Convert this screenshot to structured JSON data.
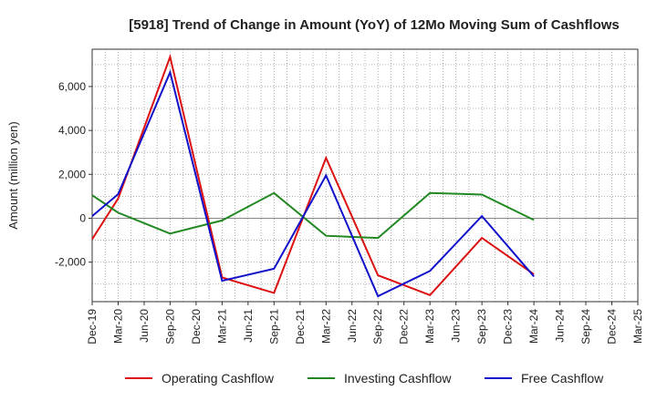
{
  "chart_data": {
    "type": "line",
    "title": "[5918]  Trend of Change in Amount (YoY) of 12Mo Moving Sum of Cashflows",
    "xlabel": "",
    "ylabel": "Amount (million yen)",
    "ylim": [
      -3800,
      7700
    ],
    "yticks": [
      -2000,
      0,
      2000,
      4000,
      6000
    ],
    "ytick_labels": [
      "-2,000",
      "0",
      "2,000",
      "4,000",
      "6,000"
    ],
    "categories": [
      "Dec-19",
      "Mar-20",
      "Jun-20",
      "Sep-20",
      "Dec-20",
      "Mar-21",
      "Jun-21",
      "Sep-21",
      "Dec-21",
      "Mar-22",
      "Jun-22",
      "Sep-22",
      "Dec-22",
      "Mar-23",
      "Jun-23",
      "Sep-23",
      "Dec-23",
      "Mar-24",
      "Jun-24",
      "Sep-24",
      "Dec-24",
      "Mar-25"
    ],
    "grid": true,
    "legend_position": "bottom",
    "series": [
      {
        "name": "Operating Cashflow",
        "color": "#dd1111",
        "values": [
          -950,
          900,
          null,
          7350,
          null,
          -2700,
          null,
          -3400,
          null,
          2750,
          null,
          -2600,
          null,
          -3500,
          null,
          -900,
          null,
          -2550,
          null,
          null,
          null,
          null
        ]
      },
      {
        "name": "Investing Cashflow",
        "color": "#228822",
        "values": [
          1050,
          250,
          null,
          -700,
          null,
          -100,
          null,
          1150,
          null,
          -800,
          null,
          -900,
          null,
          1150,
          null,
          1080,
          null,
          -80,
          null,
          null,
          null,
          null
        ]
      },
      {
        "name": "Free Cashflow",
        "color": "#1111cc",
        "values": [
          100,
          1100,
          null,
          6650,
          null,
          -2850,
          null,
          -2300,
          null,
          1950,
          null,
          -3550,
          null,
          -2400,
          null,
          100,
          null,
          -2650,
          null,
          null,
          null,
          null
        ]
      }
    ]
  }
}
